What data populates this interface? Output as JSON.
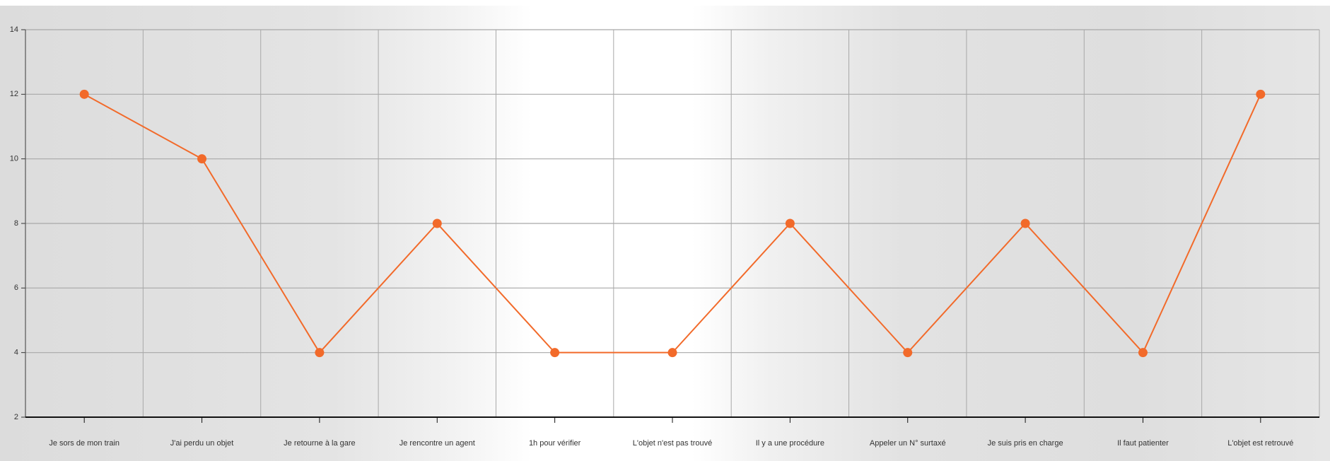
{
  "chart_data": {
    "type": "line",
    "categories": [
      "Je sors de mon train",
      "J'ai perdu un objet",
      "Je retourne à la gare",
      "Je rencontre un agent",
      "1h pour vérifier",
      "L'objet n'est pas trouvé",
      "Il y a une procédure",
      "Appeler un N° surtaxé",
      "Je suis pris en charge",
      "Il faut patienter",
      "L'objet est retrouvé"
    ],
    "values": [
      12,
      10,
      4,
      8,
      4,
      4,
      8,
      4,
      8,
      4,
      12
    ],
    "color": "#f26a2a",
    "ylim": [
      2,
      14
    ],
    "yticks": [
      2,
      4,
      6,
      8,
      10,
      12,
      14
    ],
    "grid": true
  }
}
